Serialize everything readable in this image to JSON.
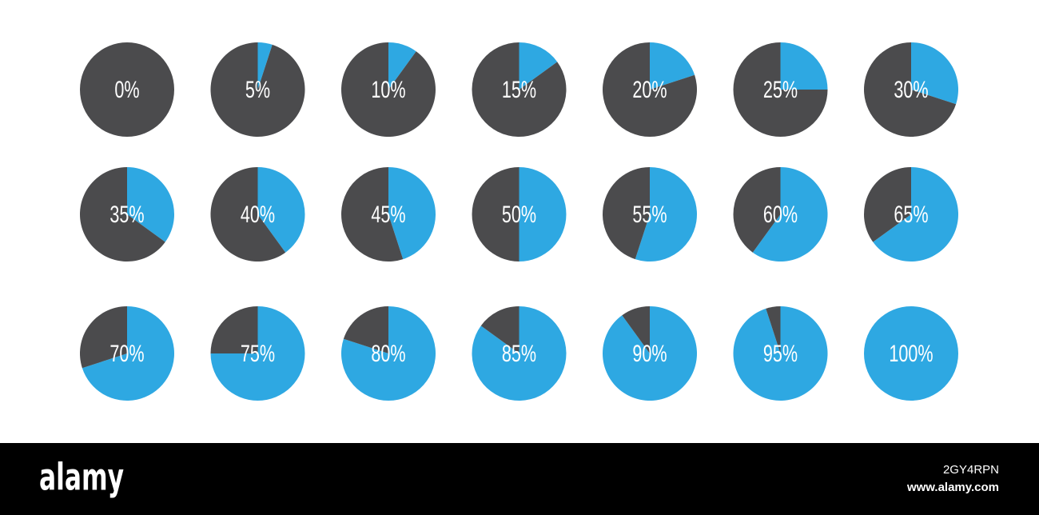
{
  "chart_data": [
    {
      "type": "pie",
      "values": [
        0,
        100
      ],
      "value_labels": [
        "0%",
        null
      ],
      "colors": [
        "#2ea8e2",
        "#4b4b4d"
      ]
    },
    {
      "type": "pie",
      "values": [
        5,
        95
      ],
      "value_labels": [
        "5%",
        null
      ],
      "colors": [
        "#2ea8e2",
        "#4b4b4d"
      ]
    },
    {
      "type": "pie",
      "values": [
        10,
        90
      ],
      "value_labels": [
        "10%",
        null
      ],
      "colors": [
        "#2ea8e2",
        "#4b4b4d"
      ]
    },
    {
      "type": "pie",
      "values": [
        15,
        85
      ],
      "value_labels": [
        "15%",
        null
      ],
      "colors": [
        "#2ea8e2",
        "#4b4b4d"
      ]
    },
    {
      "type": "pie",
      "values": [
        20,
        80
      ],
      "value_labels": [
        "20%",
        null
      ],
      "colors": [
        "#2ea8e2",
        "#4b4b4d"
      ]
    },
    {
      "type": "pie",
      "values": [
        25,
        75
      ],
      "value_labels": [
        "25%",
        null
      ],
      "colors": [
        "#2ea8e2",
        "#4b4b4d"
      ]
    },
    {
      "type": "pie",
      "values": [
        30,
        70
      ],
      "value_labels": [
        "30%",
        null
      ],
      "colors": [
        "#2ea8e2",
        "#4b4b4d"
      ]
    },
    {
      "type": "pie",
      "values": [
        35,
        65
      ],
      "value_labels": [
        "35%",
        null
      ],
      "colors": [
        "#2ea8e2",
        "#4b4b4d"
      ]
    },
    {
      "type": "pie",
      "values": [
        40,
        60
      ],
      "value_labels": [
        "40%",
        null
      ],
      "colors": [
        "#2ea8e2",
        "#4b4b4d"
      ]
    },
    {
      "type": "pie",
      "values": [
        45,
        55
      ],
      "value_labels": [
        "45%",
        null
      ],
      "colors": [
        "#2ea8e2",
        "#4b4b4d"
      ]
    },
    {
      "type": "pie",
      "values": [
        50,
        50
      ],
      "value_labels": [
        "50%",
        null
      ],
      "colors": [
        "#2ea8e2",
        "#4b4b4d"
      ]
    },
    {
      "type": "pie",
      "values": [
        55,
        45
      ],
      "value_labels": [
        "55%",
        null
      ],
      "colors": [
        "#2ea8e2",
        "#4b4b4d"
      ]
    },
    {
      "type": "pie",
      "values": [
        60,
        40
      ],
      "value_labels": [
        "60%",
        null
      ],
      "colors": [
        "#2ea8e2",
        "#4b4b4d"
      ]
    },
    {
      "type": "pie",
      "values": [
        65,
        35
      ],
      "value_labels": [
        "65%",
        null
      ],
      "colors": [
        "#2ea8e2",
        "#4b4b4d"
      ]
    },
    {
      "type": "pie",
      "values": [
        70,
        30
      ],
      "value_labels": [
        "70%",
        null
      ],
      "colors": [
        "#2ea8e2",
        "#4b4b4d"
      ]
    },
    {
      "type": "pie",
      "values": [
        75,
        25
      ],
      "value_labels": [
        "75%",
        null
      ],
      "colors": [
        "#2ea8e2",
        "#4b4b4d"
      ]
    },
    {
      "type": "pie",
      "values": [
        80,
        20
      ],
      "value_labels": [
        "80%",
        null
      ],
      "colors": [
        "#2ea8e2",
        "#4b4b4d"
      ]
    },
    {
      "type": "pie",
      "values": [
        85,
        15
      ],
      "value_labels": [
        "85%",
        null
      ],
      "colors": [
        "#2ea8e2",
        "#4b4b4d"
      ]
    },
    {
      "type": "pie",
      "values": [
        90,
        10
      ],
      "value_labels": [
        "90%",
        null
      ],
      "colors": [
        "#2ea8e2",
        "#4b4b4d"
      ]
    },
    {
      "type": "pie",
      "values": [
        95,
        5
      ],
      "value_labels": [
        "95%",
        null
      ],
      "colors": [
        "#2ea8e2",
        "#4b4b4d"
      ]
    },
    {
      "type": "pie",
      "values": [
        100,
        0
      ],
      "value_labels": [
        "100%",
        null
      ],
      "colors": [
        "#2ea8e2",
        "#4b4b4d"
      ]
    }
  ],
  "footer": {
    "logo": "alamy",
    "image_id": "2GY4RPN",
    "url": "www.alamy.com"
  }
}
